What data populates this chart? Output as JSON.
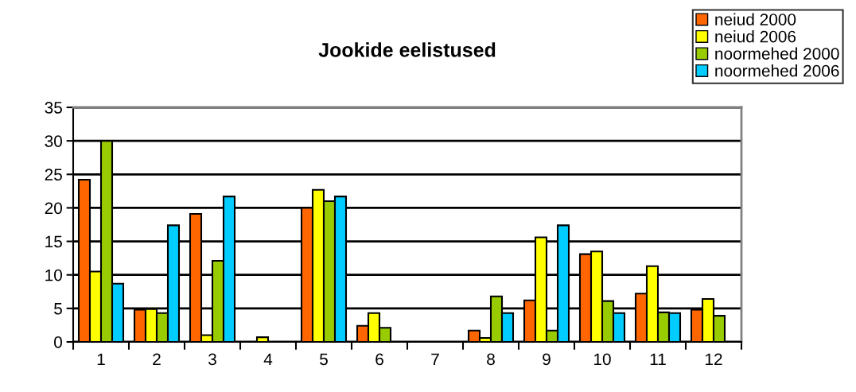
{
  "chart_data": {
    "type": "bar",
    "title": "Jookide eelistused",
    "categories": [
      "1",
      "2",
      "3",
      "4",
      "5",
      "6",
      "7",
      "8",
      "9",
      "10",
      "11",
      "12"
    ],
    "series": [
      {
        "name": "neiud 2000",
        "color": "#ff6600",
        "values": [
          24.2,
          4.8,
          19.1,
          null,
          20,
          2.4,
          null,
          1.7,
          6.2,
          13.1,
          7.2,
          4.8
        ]
      },
      {
        "name": "neiud 2006",
        "color": "#ffff00",
        "values": [
          10.5,
          4.9,
          1.0,
          0.7,
          22.7,
          4.3,
          null,
          0.6,
          15.6,
          13.5,
          11.3,
          6.4
        ]
      },
      {
        "name": "noormehed 2000",
        "color": "#99cc00",
        "values": [
          30,
          4.3,
          12.1,
          null,
          21,
          2.1,
          null,
          6.8,
          1.7,
          6.1,
          4.4,
          3.9
        ]
      },
      {
        "name": "noormehed 2006",
        "color": "#00ccff",
        "values": [
          8.7,
          17.4,
          21.7,
          null,
          21.7,
          null,
          null,
          4.3,
          17.4,
          4.3,
          4.3,
          null
        ]
      }
    ],
    "ylim": [
      0,
      35
    ],
    "yticks": [
      0,
      5,
      10,
      15,
      20,
      25,
      30,
      35
    ],
    "grid": "y",
    "legend": "top right"
  }
}
